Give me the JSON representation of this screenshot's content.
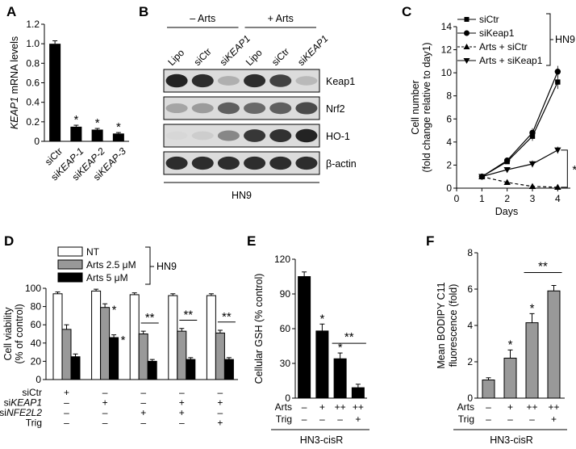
{
  "panels": {
    "A": "A",
    "B": "B",
    "C": "C",
    "D": "D",
    "E": "E",
    "F": "F"
  },
  "chart_data": [
    {
      "panel": "A",
      "type": "bar",
      "ylabel_italic": "KEAP1",
      "ylabel_rest": " mRNA levels",
      "ylim": [
        0,
        1.2
      ],
      "yticks": [
        "0",
        "0.2",
        "0.4",
        "0.6",
        "0.8",
        "1.0",
        "1.2"
      ],
      "categories": [
        {
          "prefix": "si",
          "italic": "",
          "rest": "Ctr"
        },
        {
          "prefix": "si",
          "italic": "KEAP-1",
          "rest": ""
        },
        {
          "prefix": "si",
          "italic": "KEAP-2",
          "rest": ""
        },
        {
          "prefix": "si",
          "italic": "KEAP-3",
          "rest": ""
        }
      ],
      "values": [
        1.0,
        0.15,
        0.12,
        0.08
      ],
      "errors": [
        0.03,
        0.015,
        0.012,
        0.01
      ],
      "significance": [
        "",
        "*",
        "*",
        "*"
      ]
    },
    {
      "panel": "B",
      "type": "western-blot",
      "groups": [
        "– Arts",
        "+ Arts"
      ],
      "lanes": [
        {
          "prefix": "",
          "italic": "",
          "rest": "Lipo"
        },
        {
          "prefix": "si",
          "italic": "",
          "rest": "Ctr"
        },
        {
          "prefix": "si",
          "italic": "KEAP1",
          "rest": ""
        },
        {
          "prefix": "",
          "italic": "",
          "rest": "Lipo"
        },
        {
          "prefix": "si",
          "italic": "",
          "rest": "Ctr"
        },
        {
          "prefix": "si",
          "italic": "KEAP1",
          "rest": ""
        }
      ],
      "bands": [
        {
          "label": "Keap1",
          "intensities": [
            0.95,
            0.9,
            0.25,
            0.9,
            0.8,
            0.2
          ]
        },
        {
          "label": "Nrf2",
          "intensities": [
            0.3,
            0.35,
            0.65,
            0.6,
            0.65,
            0.75
          ]
        },
        {
          "label": "HO-1",
          "intensities": [
            0.05,
            0.1,
            0.45,
            0.85,
            0.88,
            0.95
          ]
        },
        {
          "label": "β-actin",
          "intensities": [
            0.9,
            0.9,
            0.9,
            0.9,
            0.9,
            0.9
          ]
        }
      ],
      "cell_line": "HN9"
    },
    {
      "panel": "C",
      "type": "line",
      "ylabel_line1": "Cell number",
      "ylabel_line2": "(fold change relative to day1)",
      "xlabel": "Days",
      "x": [
        1,
        2,
        3,
        4
      ],
      "xlim": [
        0,
        4.5
      ],
      "xticks": [
        "0",
        "1",
        "2",
        "3",
        "4"
      ],
      "ylim": [
        0,
        14
      ],
      "yticks": [
        "0",
        "2",
        "4",
        "6",
        "8",
        "10",
        "12",
        "14"
      ],
      "series": [
        {
          "name": "siCtr",
          "values": [
            1.0,
            2.3,
            4.5,
            9.2
          ],
          "errors": [
            0.1,
            0.2,
            0.4,
            0.6
          ],
          "marker": "square",
          "dash": false
        },
        {
          "name": "siKeap1",
          "values": [
            1.0,
            2.4,
            4.8,
            10.1
          ],
          "errors": [
            0.1,
            0.2,
            0.4,
            0.5
          ],
          "marker": "circle",
          "dash": false
        },
        {
          "name": "Arts + siCtr",
          "values": [
            1.0,
            0.5,
            0.15,
            0.08
          ],
          "errors": [
            0.05,
            0.08,
            0.04,
            0.03
          ],
          "marker": "triangle",
          "dash": true
        },
        {
          "name": "Arts + siKeap1",
          "values": [
            1.0,
            1.6,
            2.1,
            3.3
          ],
          "errors": [
            0.1,
            0.2,
            0.3,
            0.3
          ],
          "marker": "triangle-down",
          "dash": false
        }
      ],
      "legend_group_label": "HN9",
      "significance": "*"
    },
    {
      "panel": "D",
      "type": "bar",
      "ylabel_line1": "Cell viability",
      "ylabel_line2": "(% of control)",
      "ylim": [
        0,
        100
      ],
      "yticks": [
        "0",
        "20",
        "40",
        "60",
        "80",
        "100"
      ],
      "legend": [
        "NT",
        "Arts 2.5 μM",
        "Arts 5 μM"
      ],
      "legend_group_label": "HN9",
      "series": [
        {
          "name": "NT",
          "values": [
            94,
            97,
            93,
            92,
            92
          ],
          "errors": [
            2,
            2,
            2,
            2,
            2
          ]
        },
        {
          "name": "Arts 2.5 μM",
          "values": [
            55,
            79,
            50,
            53,
            51
          ],
          "errors": [
            5,
            4,
            3,
            3,
            3
          ]
        },
        {
          "name": "Arts 5 μM",
          "values": [
            25,
            46,
            20,
            22,
            22
          ],
          "errors": [
            3,
            3,
            2,
            2,
            2
          ]
        }
      ],
      "significance": [
        {
          "group": 1,
          "bar": 1,
          "mark": "*"
        },
        {
          "group": 1,
          "bar": 2,
          "mark": "*"
        },
        {
          "group": 2,
          "bracket": "**"
        },
        {
          "group": 3,
          "bracket": "**"
        },
        {
          "group": 4,
          "bracket": "**"
        }
      ],
      "conditions": [
        {
          "prefix": "si",
          "italic": "",
          "rest": "Ctr",
          "marks": [
            "+",
            "–",
            "–",
            "–",
            "–"
          ]
        },
        {
          "prefix": "si",
          "italic": "KEAP1",
          "rest": "",
          "marks": [
            "–",
            "+",
            "–",
            "+",
            "+"
          ]
        },
        {
          "prefix": "si",
          "italic": "NFE2L2",
          "rest": "",
          "marks": [
            "–",
            "–",
            "+",
            "+",
            "–"
          ]
        },
        {
          "prefix": "",
          "italic": "",
          "rest": "Trig",
          "marks": [
            "–",
            "–",
            "–",
            "–",
            "+"
          ]
        }
      ]
    },
    {
      "panel": "E",
      "type": "bar",
      "ylabel": "Cellular GSH (% control)",
      "ylim": [
        0,
        120
      ],
      "yticks": [
        "0",
        "30",
        "60",
        "90",
        "120"
      ],
      "values": [
        105,
        58,
        34,
        9
      ],
      "errors": [
        4,
        6,
        5,
        3
      ],
      "significance": [
        "",
        "*",
        "*",
        ""
      ],
      "bracket": "**",
      "conditions": [
        {
          "label": "Arts",
          "marks": [
            "–",
            "+",
            "++",
            "++"
          ]
        },
        {
          "label": "Trig",
          "marks": [
            "–",
            "–",
            "–",
            "+"
          ]
        }
      ],
      "cell_line": "HN3-cisR"
    },
    {
      "panel": "F",
      "type": "bar",
      "ylabel_line1": "Mean BODIPY C11",
      "ylabel_line2": "fluorescence (fold)",
      "ylim": [
        0,
        8
      ],
      "yticks": [
        "0",
        "2",
        "4",
        "6",
        "8"
      ],
      "values": [
        1.0,
        2.2,
        4.15,
        5.9
      ],
      "errors": [
        0.12,
        0.45,
        0.5,
        0.3
      ],
      "significance": [
        "",
        "*",
        "*",
        ""
      ],
      "bracket": "**",
      "conditions": [
        {
          "label": "Arts",
          "marks": [
            "–",
            "+",
            "++",
            "++"
          ]
        },
        {
          "label": "Trig",
          "marks": [
            "–",
            "–",
            "–",
            "+"
          ]
        }
      ],
      "cell_line": "HN3-cisR"
    }
  ]
}
